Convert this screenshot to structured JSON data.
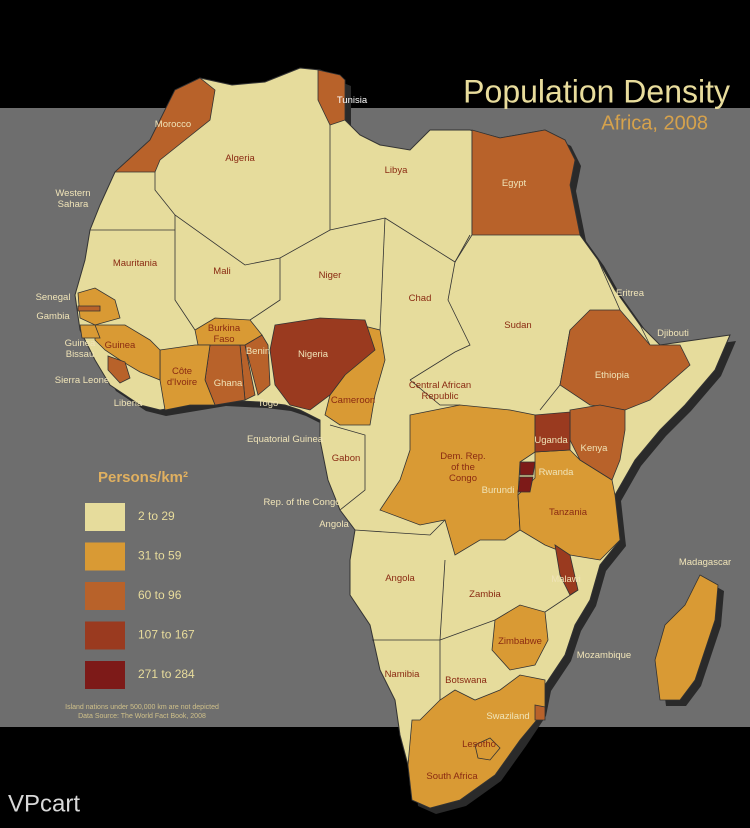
{
  "title": "Population Density",
  "subtitle": "Africa, 2008",
  "legend": {
    "title": "Persons/km²",
    "items": [
      {
        "label": "2 to 29",
        "color": "#e6dc9c"
      },
      {
        "label": "31 to 59",
        "color": "#d99a34"
      },
      {
        "label": "60 to 96",
        "color": "#b8622a"
      },
      {
        "label": "107 to 167",
        "color": "#9a3a1f"
      },
      {
        "label": "271 to 284",
        "color": "#7d1a18"
      }
    ]
  },
  "countries": [
    {
      "lines": [
        "Morocco"
      ],
      "color": "#b8622a"
    },
    {
      "lines": [
        "Algeria"
      ],
      "color": "#e6dc9c"
    },
    {
      "lines": [
        "Tunisia"
      ],
      "color": "#b8622a"
    },
    {
      "lines": [
        "Western",
        "Sahara"
      ],
      "color": "#e6dc9c"
    },
    {
      "lines": [
        "Libya"
      ],
      "color": "#e6dc9c"
    },
    {
      "lines": [
        "Egypt"
      ],
      "color": "#b8622a"
    },
    {
      "lines": [
        "Mauritania"
      ],
      "color": "#e6dc9c"
    },
    {
      "lines": [
        "Mali"
      ],
      "color": "#e6dc9c"
    },
    {
      "lines": [
        "Niger"
      ],
      "color": "#e6dc9c"
    },
    {
      "lines": [
        "Chad"
      ],
      "color": "#e6dc9c"
    },
    {
      "lines": [
        "Sudan"
      ],
      "color": "#e6dc9c"
    },
    {
      "lines": [
        "Eritrea"
      ],
      "color": "#e6dc9c"
    },
    {
      "lines": [
        "Djibouti"
      ],
      "color": "#e6dc9c"
    },
    {
      "lines": [
        "Ethiopia"
      ],
      "color": "#b8622a"
    },
    {
      "lines": [
        "Senegal"
      ],
      "color": "#d99a34"
    },
    {
      "lines": [
        "Gambia"
      ],
      "color": "#b8622a"
    },
    {
      "lines": [
        "Guinea",
        "Bissau"
      ],
      "color": "#d99a34"
    },
    {
      "lines": [
        "Guinea"
      ],
      "color": "#d99a34"
    },
    {
      "lines": [
        "Sierra Leone"
      ],
      "color": "#b8622a"
    },
    {
      "lines": [
        "Liberia"
      ],
      "color": "#e6dc9c"
    },
    {
      "lines": [
        "Côte",
        "d'Ivoire"
      ],
      "color": "#d99a34"
    },
    {
      "lines": [
        "Burkina",
        "Faso"
      ],
      "color": "#d99a34"
    },
    {
      "lines": [
        "Ghana"
      ],
      "color": "#b8622a"
    },
    {
      "lines": [
        "Togo"
      ],
      "color": "#b8622a"
    },
    {
      "lines": [
        "Benin"
      ],
      "color": "#b8622a"
    },
    {
      "lines": [
        "Nigeria"
      ],
      "color": "#9a3a1f"
    },
    {
      "lines": [
        "Cameroon"
      ],
      "color": "#d99a34"
    },
    {
      "lines": [
        "Central African",
        "Republic"
      ],
      "color": "#e6dc9c"
    },
    {
      "lines": [
        "Equatorial Guinea"
      ],
      "color": "#e6dc9c"
    },
    {
      "lines": [
        "Gabon"
      ],
      "color": "#e6dc9c"
    },
    {
      "lines": [
        "Rep. of the Congo"
      ],
      "color": "#e6dc9c"
    },
    {
      "lines": [
        "Angola"
      ],
      "color": "#e6dc9c"
    },
    {
      "lines": [
        "Dem. Rep.",
        "of the",
        "Congo"
      ],
      "color": "#d99a34"
    },
    {
      "lines": [
        "Uganda"
      ],
      "color": "#9a3a1f"
    },
    {
      "lines": [
        "Kenya"
      ],
      "color": "#b8622a"
    },
    {
      "lines": [
        "Rwanda"
      ],
      "color": "#7d1a18"
    },
    {
      "lines": [
        "Burundi"
      ],
      "color": "#7d1a18"
    },
    {
      "lines": [
        "Tanzania"
      ],
      "color": "#d99a34"
    },
    {
      "lines": [
        "Angola"
      ],
      "color": "#e6dc9c"
    },
    {
      "lines": [
        "Zambia"
      ],
      "color": "#e6dc9c"
    },
    {
      "lines": [
        "Malawi"
      ],
      "color": "#9a3a1f"
    },
    {
      "lines": [
        "Madagascar"
      ],
      "color": "#d99a34"
    },
    {
      "lines": [
        "Mozambique"
      ],
      "color": "#e6dc9c"
    },
    {
      "lines": [
        "Zimbabwe"
      ],
      "color": "#d99a34"
    },
    {
      "lines": [
        "Namibia"
      ],
      "color": "#e6dc9c"
    },
    {
      "lines": [
        "Botswana"
      ],
      "color": "#e6dc9c"
    },
    {
      "lines": [
        "Swaziland"
      ],
      "color": "#b8622a"
    },
    {
      "lines": [
        "Lesotho"
      ],
      "color": "#d99a34"
    },
    {
      "lines": [
        "South Africa"
      ],
      "color": "#d99a34"
    }
  ],
  "footnotes": [
    "Island nations under 500,000 km  are not depicted",
    "Data Source: The World Fact Book, 2008"
  ],
  "logo": "VPcart"
}
